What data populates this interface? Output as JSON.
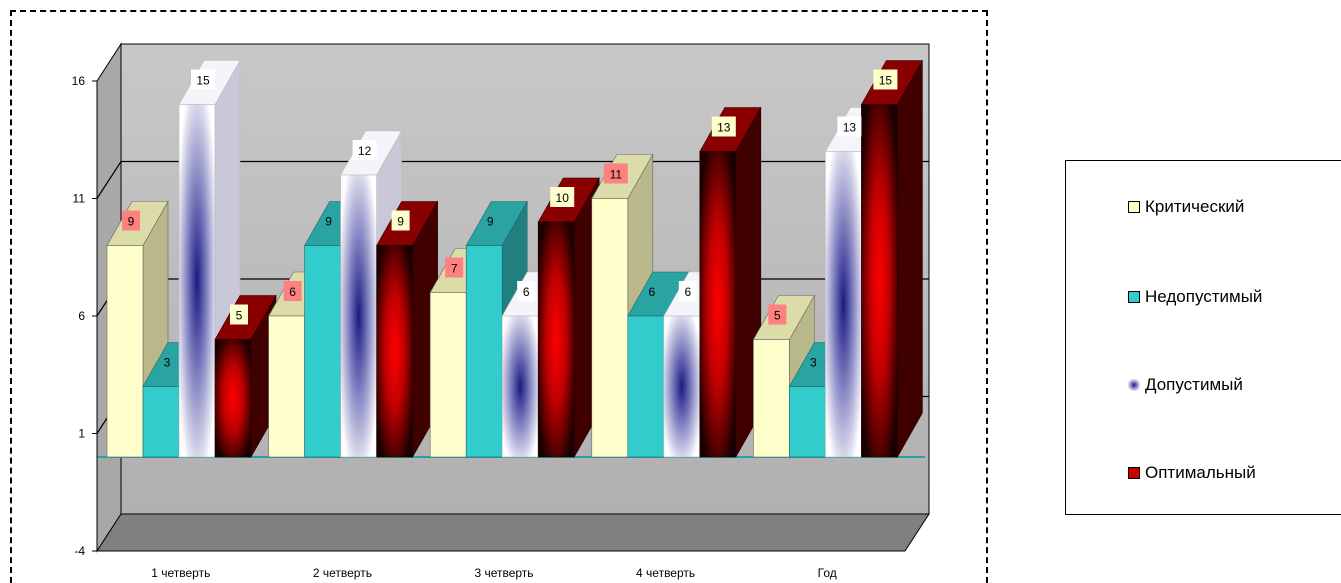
{
  "chart_data": {
    "type": "bar",
    "title": "",
    "xlabel": "",
    "ylabel": "",
    "categories": [
      "1 четверть",
      "2 четверть",
      "3 четверть",
      "4 четверть",
      "Год"
    ],
    "series": [
      {
        "name": "Критический",
        "values": [
          9,
          6,
          7,
          11,
          5
        ],
        "color": "#ffffcc",
        "label_bg": "#ff8080"
      },
      {
        "name": "Недопустимый",
        "values": [
          3,
          9,
          9,
          6,
          3
        ],
        "color": "#33cccc",
        "label_bg": "none"
      },
      {
        "name": "Допустимый",
        "values": [
          15,
          12,
          6,
          6,
          13
        ],
        "color": "#1a1a80",
        "label_bg": "#ffffff"
      },
      {
        "name": "Оптимальный",
        "values": [
          5,
          9,
          10,
          13,
          15
        ],
        "color": "#cc0000",
        "label_bg": "#ffffcc"
      }
    ],
    "ylim": [
      -4,
      16
    ],
    "yticks": [
      "-4",
      "1",
      "6",
      "11",
      "16"
    ],
    "grid": true,
    "legend_position": "right"
  }
}
